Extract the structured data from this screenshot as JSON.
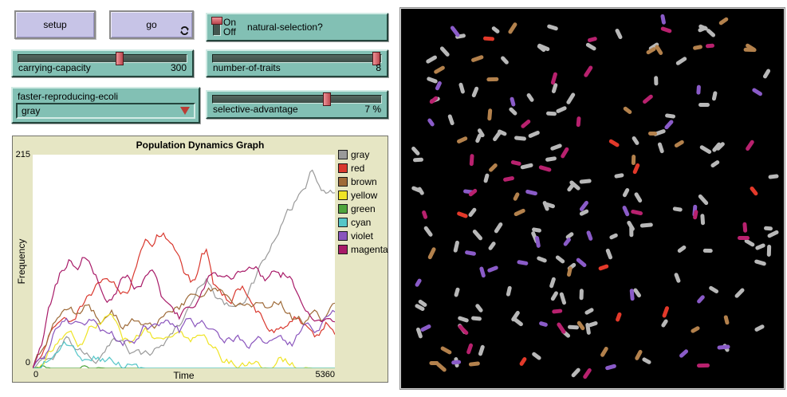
{
  "buttons": {
    "setup": "setup",
    "go": "go"
  },
  "switch": {
    "label": "natural-selection?",
    "on_label": "On",
    "off_label": "Off",
    "state": "On"
  },
  "sliders": [
    {
      "label": "carrying-capacity",
      "value": "300",
      "fraction": 0.6
    },
    {
      "label": "number-of-traits",
      "value": "8",
      "fraction": 0.97
    },
    {
      "label": "selective-advantage",
      "value": "7 %",
      "fraction": 0.68
    }
  ],
  "chooser": {
    "label": "faster-reproducing-ecoli",
    "selected": "gray"
  },
  "chart_data": {
    "type": "line",
    "title": "Population Dynamics Graph",
    "xlabel": "Time",
    "ylabel": "Frequency",
    "xlim": [
      0,
      5360
    ],
    "ylim": [
      0,
      215
    ],
    "x_tick_labels": [
      "0",
      "5360"
    ],
    "y_tick_labels": [
      "0",
      "215"
    ],
    "grid": false,
    "legend_position": "right",
    "series": [
      {
        "name": "gray",
        "color": "#9a9a9a",
        "points": [
          [
            0,
            0
          ],
          [
            200,
            4
          ],
          [
            400,
            14
          ],
          [
            600,
            30
          ],
          [
            800,
            22
          ],
          [
            1000,
            14
          ],
          [
            1200,
            12
          ],
          [
            1400,
            22
          ],
          [
            1600,
            28
          ],
          [
            1800,
            20
          ],
          [
            2000,
            14
          ],
          [
            2200,
            20
          ],
          [
            2400,
            30
          ],
          [
            2600,
            45
          ],
          [
            2800,
            62
          ],
          [
            3000,
            88
          ],
          [
            3100,
            95
          ],
          [
            3300,
            70
          ],
          [
            3500,
            62
          ],
          [
            3700,
            75
          ],
          [
            3900,
            88
          ],
          [
            4100,
            108
          ],
          [
            4300,
            128
          ],
          [
            4500,
            150
          ],
          [
            4700,
            168
          ],
          [
            4950,
            196
          ],
          [
            5100,
            178
          ],
          [
            5200,
            170
          ],
          [
            5300,
            182
          ],
          [
            5360,
            178
          ]
        ]
      },
      {
        "name": "red",
        "color": "#d9382e",
        "points": [
          [
            0,
            0
          ],
          [
            150,
            10
          ],
          [
            300,
            35
          ],
          [
            500,
            58
          ],
          [
            700,
            48
          ],
          [
            900,
            68
          ],
          [
            1100,
            78
          ],
          [
            1300,
            95
          ],
          [
            1500,
            80
          ],
          [
            1700,
            70
          ],
          [
            1900,
            105
          ],
          [
            2000,
            118
          ],
          [
            2100,
            112
          ],
          [
            2200,
            130
          ],
          [
            2300,
            135
          ],
          [
            2400,
            128
          ],
          [
            2500,
            118
          ],
          [
            2600,
            108
          ],
          [
            2700,
            95
          ],
          [
            2800,
            88
          ],
          [
            2900,
            85
          ],
          [
            3000,
            108
          ],
          [
            3100,
            112
          ],
          [
            3200,
            85
          ],
          [
            3300,
            72
          ],
          [
            3500,
            62
          ],
          [
            3700,
            78
          ],
          [
            3900,
            72
          ],
          [
            4100,
            52
          ],
          [
            4300,
            38
          ],
          [
            4500,
            45
          ],
          [
            4700,
            52
          ],
          [
            4900,
            32
          ],
          [
            5100,
            28
          ],
          [
            5200,
            38
          ],
          [
            5360,
            22
          ]
        ]
      },
      {
        "name": "brown",
        "color": "#9e6a38",
        "points": [
          [
            0,
            0
          ],
          [
            200,
            18
          ],
          [
            400,
            48
          ],
          [
            600,
            62
          ],
          [
            800,
            52
          ],
          [
            1000,
            62
          ],
          [
            1200,
            48
          ],
          [
            1400,
            55
          ],
          [
            1600,
            42
          ],
          [
            1800,
            48
          ],
          [
            2000,
            38
          ],
          [
            2200,
            45
          ],
          [
            2400,
            52
          ],
          [
            2600,
            58
          ],
          [
            2800,
            68
          ],
          [
            3000,
            60
          ],
          [
            3200,
            72
          ],
          [
            3400,
            68
          ],
          [
            3600,
            62
          ],
          [
            3800,
            72
          ],
          [
            4000,
            66
          ],
          [
            4200,
            58
          ],
          [
            4400,
            68
          ],
          [
            4600,
            52
          ],
          [
            4800,
            48
          ],
          [
            5000,
            58
          ],
          [
            5200,
            50
          ],
          [
            5360,
            62
          ]
        ]
      },
      {
        "name": "yellow",
        "color": "#efe426",
        "points": [
          [
            0,
            0
          ],
          [
            200,
            10
          ],
          [
            400,
            25
          ],
          [
            600,
            38
          ],
          [
            800,
            28
          ],
          [
            1000,
            42
          ],
          [
            1200,
            48
          ],
          [
            1400,
            58
          ],
          [
            1500,
            55
          ],
          [
            1600,
            42
          ],
          [
            1800,
            32
          ],
          [
            2000,
            40
          ],
          [
            2200,
            28
          ],
          [
            2400,
            32
          ],
          [
            2600,
            42
          ],
          [
            2800,
            25
          ],
          [
            3000,
            32
          ],
          [
            3200,
            22
          ],
          [
            3400,
            10
          ],
          [
            3600,
            4
          ],
          [
            3800,
            2
          ],
          [
            4000,
            4
          ],
          [
            4200,
            2
          ],
          [
            4400,
            12
          ],
          [
            4600,
            4
          ],
          [
            4800,
            1
          ],
          [
            5000,
            0
          ],
          [
            5360,
            0
          ]
        ]
      },
      {
        "name": "green",
        "color": "#4fa53c",
        "points": [
          [
            0,
            0
          ],
          [
            300,
            3
          ],
          [
            500,
            7
          ],
          [
            700,
            3
          ],
          [
            900,
            1
          ],
          [
            1100,
            1
          ],
          [
            1300,
            0
          ],
          [
            5360,
            0
          ]
        ]
      },
      {
        "name": "cyan",
        "color": "#55c6c8",
        "points": [
          [
            0,
            0
          ],
          [
            200,
            8
          ],
          [
            400,
            20
          ],
          [
            550,
            27
          ],
          [
            700,
            15
          ],
          [
            900,
            8
          ],
          [
            1100,
            12
          ],
          [
            1300,
            5
          ],
          [
            1500,
            8
          ],
          [
            1700,
            3
          ],
          [
            1900,
            1
          ],
          [
            2000,
            0
          ],
          [
            5360,
            0
          ]
        ]
      },
      {
        "name": "violet",
        "color": "#8a55bd",
        "points": [
          [
            0,
            0
          ],
          [
            200,
            15
          ],
          [
            400,
            40
          ],
          [
            600,
            50
          ],
          [
            800,
            40
          ],
          [
            1000,
            45
          ],
          [
            1200,
            35
          ],
          [
            1400,
            42
          ],
          [
            1600,
            30
          ],
          [
            1800,
            36
          ],
          [
            2000,
            45
          ],
          [
            2200,
            40
          ],
          [
            2400,
            46
          ],
          [
            2600,
            34
          ],
          [
            2800,
            50
          ],
          [
            3000,
            44
          ],
          [
            3200,
            34
          ],
          [
            3400,
            24
          ],
          [
            3600,
            30
          ],
          [
            3800,
            24
          ],
          [
            4000,
            30
          ],
          [
            4200,
            26
          ],
          [
            4400,
            34
          ],
          [
            4600,
            30
          ],
          [
            4800,
            40
          ],
          [
            5000,
            34
          ],
          [
            5200,
            46
          ],
          [
            5360,
            55
          ]
        ]
      },
      {
        "name": "magenta",
        "color": "#a81a68",
        "points": [
          [
            0,
            0
          ],
          [
            150,
            25
          ],
          [
            300,
            62
          ],
          [
            500,
            95
          ],
          [
            650,
            108
          ],
          [
            800,
            96
          ],
          [
            950,
            112
          ],
          [
            1100,
            92
          ],
          [
            1250,
            78
          ],
          [
            1400,
            70
          ],
          [
            1550,
            88
          ],
          [
            1700,
            95
          ],
          [
            1850,
            85
          ],
          [
            2000,
            92
          ],
          [
            2150,
            96
          ],
          [
            2300,
            72
          ],
          [
            2450,
            58
          ],
          [
            2600,
            48
          ],
          [
            2750,
            55
          ],
          [
            2900,
            65
          ],
          [
            3050,
            88
          ],
          [
            3200,
            95
          ],
          [
            3350,
            85
          ],
          [
            3500,
            80
          ],
          [
            3650,
            88
          ],
          [
            3800,
            92
          ],
          [
            3950,
            98
          ],
          [
            4100,
            88
          ],
          [
            4250,
            95
          ],
          [
            4400,
            85
          ],
          [
            4550,
            92
          ],
          [
            4700,
            75
          ],
          [
            4850,
            62
          ],
          [
            5000,
            55
          ],
          [
            5150,
            48
          ],
          [
            5250,
            55
          ],
          [
            5360,
            50
          ]
        ]
      }
    ]
  },
  "view": {
    "background": "#000000",
    "agents": [
      {
        "name": "gray",
        "color": "#b8b8b8",
        "count": 122
      },
      {
        "name": "brown",
        "color": "#b3814c",
        "count": 30
      },
      {
        "name": "violet",
        "color": "#8a5bc8",
        "count": 30
      },
      {
        "name": "magenta",
        "color": "#b8216e",
        "count": 27
      },
      {
        "name": "red",
        "color": "#e3392a",
        "count": 9
      }
    ]
  }
}
